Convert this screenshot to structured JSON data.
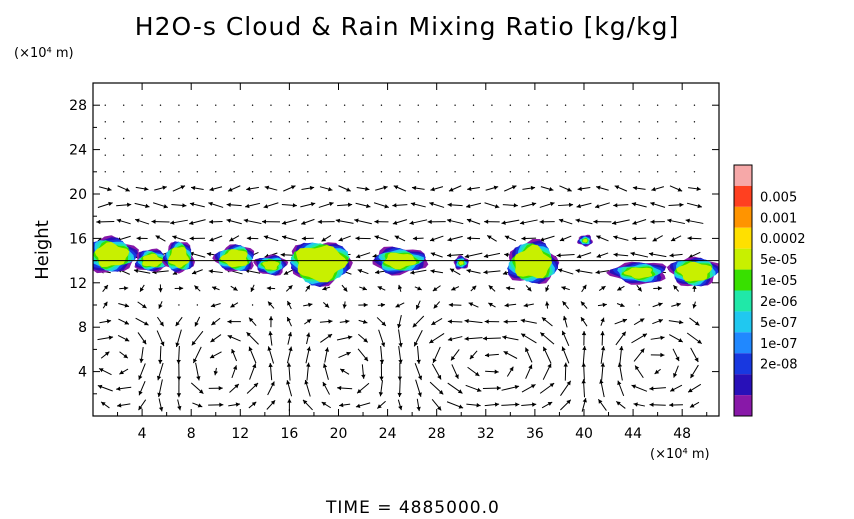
{
  "chart_data": {
    "type": "heatmap",
    "title": "H2O-s Cloud & Rain Mixing Ratio [kg/kg]",
    "xunit": "(×10⁴ m)",
    "yunit": "(×10⁴ m)",
    "ylabel": "Height",
    "xlabel": "",
    "xlim": [
      0,
      51
    ],
    "ylim": [
      0,
      30
    ],
    "x_ticks": [
      4,
      8,
      12,
      16,
      20,
      24,
      28,
      32,
      36,
      40,
      44,
      48
    ],
    "y_ticks": [
      4,
      8,
      12,
      16,
      20,
      24,
      28
    ],
    "legend": {
      "labels": [
        "0.005",
        "0.001",
        "0.0002",
        "5e-05",
        "1e-05",
        "2e-06",
        "5e-07",
        "1e-07",
        "2e-08"
      ],
      "colors": [
        "#f6a8a8",
        "#ff4020",
        "#ff9400",
        "#ffe000",
        "#c8f000",
        "#38e000",
        "#20e8a8",
        "#20c8f0",
        "#2088ff",
        "#1838e0",
        "#2810b8",
        "#8818a8"
      ]
    },
    "cloud_cells": [
      {
        "x": 1.5,
        "y": 14.5,
        "rx": 2.0,
        "ry": 1.6,
        "core": 0.6
      },
      {
        "x": 4.8,
        "y": 14.0,
        "rx": 1.4,
        "ry": 1.0,
        "core": 0.5
      },
      {
        "x": 7.0,
        "y": 14.3,
        "rx": 1.2,
        "ry": 1.4,
        "core": 0.6
      },
      {
        "x": 11.6,
        "y": 14.2,
        "rx": 1.6,
        "ry": 1.2,
        "core": 0.6
      },
      {
        "x": 14.5,
        "y": 13.6,
        "rx": 1.3,
        "ry": 0.9,
        "core": 0.4
      },
      {
        "x": 18.5,
        "y": 13.8,
        "rx": 2.4,
        "ry": 1.9,
        "core": 0.8
      },
      {
        "x": 25.0,
        "y": 14.0,
        "rx": 2.2,
        "ry": 1.2,
        "core": 0.5
      },
      {
        "x": 30.0,
        "y": 13.8,
        "rx": 0.6,
        "ry": 0.6,
        "core": 0.2
      },
      {
        "x": 35.8,
        "y": 13.8,
        "rx": 2.0,
        "ry": 1.9,
        "core": 0.7
      },
      {
        "x": 40.1,
        "y": 15.8,
        "rx": 0.6,
        "ry": 0.5,
        "core": 0.2
      },
      {
        "x": 44.5,
        "y": 12.9,
        "rx": 2.3,
        "ry": 1.0,
        "core": 0.4
      },
      {
        "x": 49.0,
        "y": 13.0,
        "rx": 2.0,
        "ry": 1.3,
        "core": 0.6
      }
    ],
    "time_label": "TIME = 4885000.0"
  }
}
